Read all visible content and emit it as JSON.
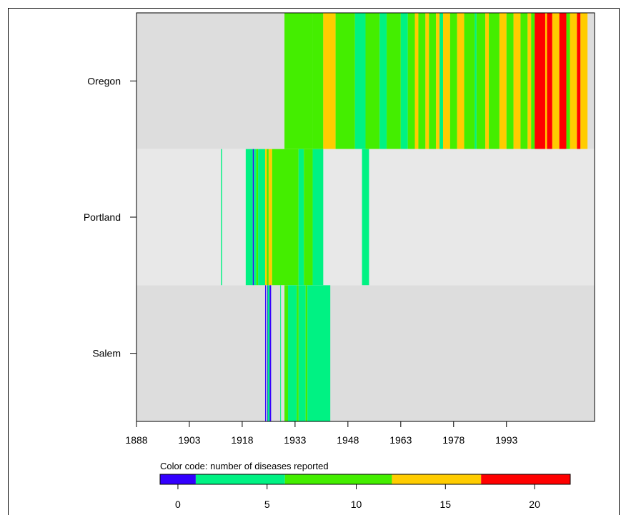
{
  "chart_data": {
    "type": "heatmap",
    "title": "",
    "xlabel": "",
    "ylabel": "",
    "x_range": [
      1888,
      2018
    ],
    "x_ticks": [
      "1888",
      "1903",
      "1918",
      "1933",
      "1948",
      "1963",
      "1978",
      "1993"
    ],
    "rows": [
      "Oregon",
      "Portland",
      "Salem"
    ],
    "colorbar": {
      "title": "Color code: number of diseases reported",
      "ticks": [
        "0",
        "5",
        "10",
        "15",
        "20"
      ],
      "range": [
        -1,
        22
      ],
      "bins": [
        {
          "from": -1,
          "to": 1,
          "color": "#3300ff"
        },
        {
          "from": 1,
          "to": 6,
          "color": "#00f283"
        },
        {
          "from": 6,
          "to": 12,
          "color": "#44ee00"
        },
        {
          "from": 12,
          "to": 17,
          "color": "#ffcc00"
        },
        {
          "from": 17,
          "to": 22,
          "color": "#ff0000"
        }
      ]
    },
    "colors": {
      "row_background_alt1": "#dddddd",
      "row_background_alt2": "#e8e8e8",
      "blue": "#3300ff",
      "teal": "#00f283",
      "green": "#44ee00",
      "yellow": "#ffcc00",
      "red": "#ff0000"
    },
    "segments": {
      "Oregon": [
        {
          "from": 1930.0,
          "to": 1938.0,
          "cat": "green"
        },
        {
          "from": 1938.0,
          "to": 1941.0,
          "cat": "green"
        },
        {
          "from": 1941.0,
          "to": 1944.5,
          "cat": "yellow"
        },
        {
          "from": 1944.5,
          "to": 1950.0,
          "cat": "green"
        },
        {
          "from": 1950.0,
          "to": 1953.0,
          "cat": "teal"
        },
        {
          "from": 1953.0,
          "to": 1957.0,
          "cat": "green"
        },
        {
          "from": 1957.0,
          "to": 1959.0,
          "cat": "teal"
        },
        {
          "from": 1959.0,
          "to": 1963.0,
          "cat": "green"
        },
        {
          "from": 1963.0,
          "to": 1965.0,
          "cat": "teal"
        },
        {
          "from": 1965.0,
          "to": 1967.0,
          "cat": "green"
        },
        {
          "from": 1967.0,
          "to": 1968.0,
          "cat": "yellow"
        },
        {
          "from": 1968.0,
          "to": 1970.0,
          "cat": "green"
        },
        {
          "from": 1970.0,
          "to": 1971.0,
          "cat": "yellow"
        },
        {
          "from": 1971.0,
          "to": 1973.0,
          "cat": "green"
        },
        {
          "from": 1973.0,
          "to": 1974.0,
          "cat": "yellow"
        },
        {
          "from": 1974.0,
          "to": 1975.0,
          "cat": "teal"
        },
        {
          "from": 1975.0,
          "to": 1977.0,
          "cat": "yellow"
        },
        {
          "from": 1977.0,
          "to": 1979.0,
          "cat": "green"
        },
        {
          "from": 1979.0,
          "to": 1981.0,
          "cat": "yellow"
        },
        {
          "from": 1981.0,
          "to": 1984.0,
          "cat": "green"
        },
        {
          "from": 1984.0,
          "to": 1984.5,
          "cat": "teal"
        },
        {
          "from": 1984.5,
          "to": 1987.0,
          "cat": "green"
        },
        {
          "from": 1987.0,
          "to": 1988.0,
          "cat": "yellow"
        },
        {
          "from": 1988.0,
          "to": 1991.0,
          "cat": "green"
        },
        {
          "from": 1991.0,
          "to": 1993.0,
          "cat": "yellow"
        },
        {
          "from": 1993.0,
          "to": 1995.0,
          "cat": "green"
        },
        {
          "from": 1995.0,
          "to": 1997.0,
          "cat": "yellow"
        },
        {
          "from": 1997.0,
          "to": 1999.0,
          "cat": "green"
        },
        {
          "from": 1999.0,
          "to": 2000.0,
          "cat": "yellow"
        },
        {
          "from": 2000.0,
          "to": 2001.0,
          "cat": "green"
        },
        {
          "from": 2001.0,
          "to": 2004.0,
          "cat": "red"
        },
        {
          "from": 2004.0,
          "to": 2004.5,
          "cat": "yellow"
        },
        {
          "from": 2004.5,
          "to": 2006.0,
          "cat": "red"
        },
        {
          "from": 2006.0,
          "to": 2008.0,
          "cat": "yellow"
        },
        {
          "from": 2008.0,
          "to": 2010.0,
          "cat": "red"
        },
        {
          "from": 2010.0,
          "to": 2011.0,
          "cat": "green"
        },
        {
          "from": 2011.0,
          "to": 2013.0,
          "cat": "yellow"
        },
        {
          "from": 2013.0,
          "to": 2014.0,
          "cat": "red"
        },
        {
          "from": 2014.0,
          "to": 2016.0,
          "cat": "yellow"
        }
      ],
      "Portland": [
        {
          "from": 1912.0,
          "to": 1912.3,
          "cat": "teal"
        },
        {
          "from": 1919.0,
          "to": 1921.0,
          "cat": "teal"
        },
        {
          "from": 1921.0,
          "to": 1921.3,
          "cat": "blue"
        },
        {
          "from": 1921.3,
          "to": 1922.0,
          "cat": "teal"
        },
        {
          "from": 1922.0,
          "to": 1922.5,
          "cat": "green"
        },
        {
          "from": 1922.5,
          "to": 1924.5,
          "cat": "teal"
        },
        {
          "from": 1924.5,
          "to": 1925.0,
          "cat": "yellow"
        },
        {
          "from": 1925.0,
          "to": 1925.5,
          "cat": "green"
        },
        {
          "from": 1925.5,
          "to": 1926.5,
          "cat": "yellow"
        },
        {
          "from": 1926.5,
          "to": 1934.0,
          "cat": "green"
        },
        {
          "from": 1934.0,
          "to": 1935.5,
          "cat": "teal"
        },
        {
          "from": 1935.5,
          "to": 1938.0,
          "cat": "green"
        },
        {
          "from": 1938.0,
          "to": 1941.0,
          "cat": "teal"
        },
        {
          "from": 1952.0,
          "to": 1954.0,
          "cat": "teal"
        }
      ],
      "Salem": [
        {
          "from": 1924.5,
          "to": 1924.7,
          "cat": "blue"
        },
        {
          "from": 1925.0,
          "to": 1925.2,
          "cat": "blue"
        },
        {
          "from": 1925.2,
          "to": 1925.8,
          "cat": "teal"
        },
        {
          "from": 1925.8,
          "to": 1926.2,
          "cat": "blue"
        },
        {
          "from": 1928.8,
          "to": 1929.0,
          "cat": "teal"
        },
        {
          "from": 1930.0,
          "to": 1931.0,
          "cat": "green"
        },
        {
          "from": 1931.0,
          "to": 1933.5,
          "cat": "teal"
        },
        {
          "from": 1933.5,
          "to": 1934.0,
          "cat": "green"
        },
        {
          "from": 1934.0,
          "to": 1936.0,
          "cat": "teal"
        },
        {
          "from": 1936.0,
          "to": 1936.5,
          "cat": "green"
        },
        {
          "from": 1936.5,
          "to": 1943.0,
          "cat": "teal"
        }
      ]
    }
  }
}
